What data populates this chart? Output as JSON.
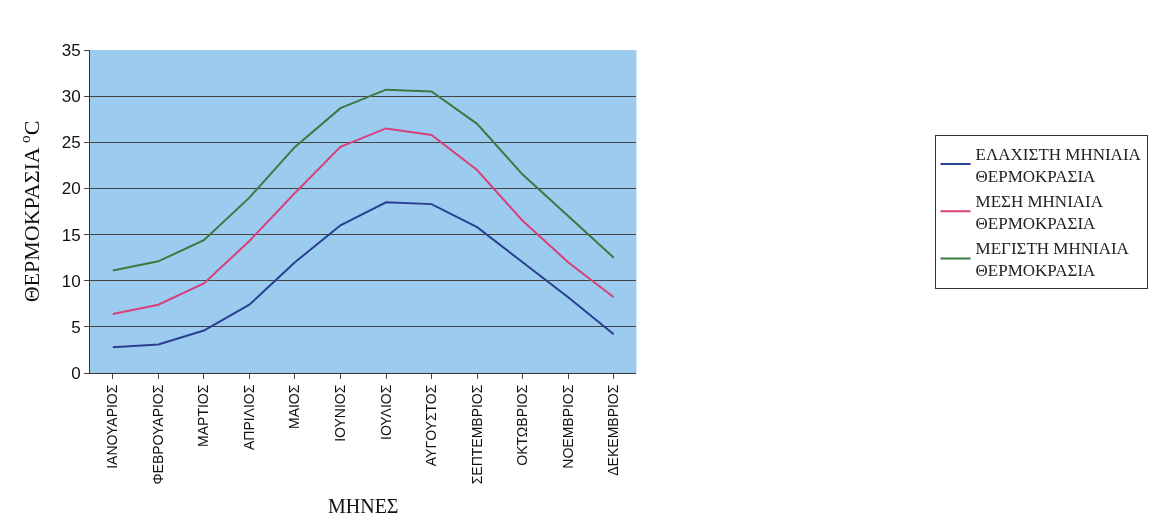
{
  "chart_data": {
    "type": "line",
    "xlabel": "ΜΗΝΕΣ",
    "ylabel": "ΘΕΡΜΟΚΡΑΣΙΑ $^{o}$C",
    "categories": [
      "ΙΑΝΟΥΑΡΙΟΣ",
      "ΦΕΒΡΟΥΑΡΙΟΣ",
      "ΜΑΡΤΙΟΣ",
      "ΑΠΡΙΛΙΟΣ",
      "ΜΑΙΟΣ",
      "ΙΟΥΝΙΟΣ",
      "ΙΟΥΛΙΟΣ",
      "ΑΥΓΟΥΣΤΟΣ",
      "ΣΕΠΤΕΜΒΡΙΟΣ",
      "ΟΚΤΩΒΡΙΟΣ",
      "ΝΟΕΜΒΡΙΟΣ",
      "ΔΕΚΕΜΒΡΙΟΣ"
    ],
    "series": [
      {
        "name": "ΕΛΑΧΙΣΤΗ ΜΗΝΙΑΙΑ ΘΕΡΜΟΚΡΑΣΙΑ",
        "color": "#2a3f8f",
        "values": [
          2.8,
          3.1,
          4.6,
          7.4,
          12,
          16,
          18.5,
          18.3,
          15.8,
          12,
          8.2,
          4.2
        ]
      },
      {
        "name": "ΜΕΣΗ ΜΗΝΙΑΙΑ ΘΕΡΜΟΚΡΑΣΙΑ",
        "color": "#d8407a",
        "values": [
          6.4,
          7.4,
          9.7,
          14.3,
          19.5,
          24.5,
          26.5,
          25.8,
          22,
          16.5,
          12,
          8.2
        ]
      },
      {
        "name": "ΜΕΓΙΣΤΗ ΜΗΝΙΑΙΑ ΘΕΡΜΟΚΡΑΣΙΑ",
        "color": "#3a7a40",
        "values": [
          11.1,
          12.1,
          14.4,
          19,
          24.5,
          28.7,
          30.7,
          30.5,
          27,
          21.5,
          17,
          12.5
        ]
      }
    ],
    "ylim": [
      0,
      35
    ],
    "yticks": [
      0,
      5,
      10,
      15,
      20,
      25,
      30,
      35
    ],
    "grid": "y",
    "legend": "right",
    "marker": "none",
    "line_style": "solid"
  }
}
